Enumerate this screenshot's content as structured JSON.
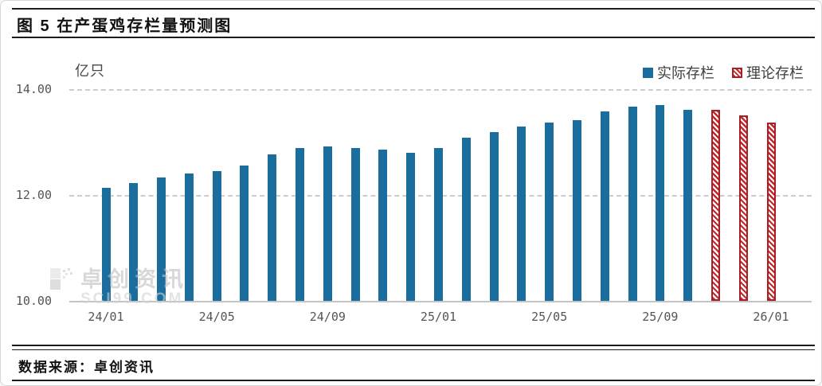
{
  "header": {
    "title": "图 5 在产蛋鸡存栏量预测图"
  },
  "footer": {
    "source_label": "数据来源：卓创资讯"
  },
  "watermark": {
    "brand": "卓创资讯",
    "site": "SCI99.COM"
  },
  "colors": {
    "actual_bar": "#1b6d9e",
    "theory_bar_fill": "#c2272d",
    "theory_bar_border": "#a81e23",
    "gridline": "#cccccc",
    "axis_text": "#555555",
    "title_text": "#111111"
  },
  "chart_data": {
    "type": "bar",
    "title": "在产蛋鸡存栏量预测图",
    "unit_label": "亿只",
    "ylabel": "亿只",
    "xlabel": "",
    "ylim": [
      10.0,
      14.0
    ],
    "yticks": [
      10.0,
      12.0,
      14.0
    ],
    "grid": "horizontal-dashed",
    "legend_position": "top-right",
    "x": [
      "24/01",
      "24/02",
      "24/03",
      "24/04",
      "24/05",
      "24/06",
      "24/07",
      "24/08",
      "24/09",
      "24/10",
      "24/11",
      "24/12",
      "25/01",
      "25/02",
      "25/03",
      "25/04",
      "25/05",
      "25/06",
      "25/07",
      "25/08",
      "25/09",
      "25/10",
      "25/11",
      "25/12",
      "26/01"
    ],
    "x_tick_labels": [
      "24/01",
      "24/05",
      "24/09",
      "25/01",
      "25/05",
      "25/09",
      "26/01"
    ],
    "series": [
      {
        "name": "实际存栏",
        "style": "solid",
        "values": [
          12.13,
          12.22,
          12.33,
          12.41,
          12.45,
          12.55,
          12.77,
          12.89,
          12.92,
          12.89,
          12.86,
          12.8,
          12.88,
          13.09,
          13.19,
          13.3,
          13.37,
          13.42,
          13.58,
          13.67,
          13.7,
          13.61,
          null,
          null,
          null
        ]
      },
      {
        "name": "理论存栏",
        "style": "hatched",
        "values": [
          null,
          null,
          null,
          null,
          null,
          null,
          null,
          null,
          null,
          null,
          null,
          null,
          null,
          null,
          null,
          null,
          null,
          null,
          null,
          null,
          null,
          null,
          13.61,
          13.5,
          13.37
        ]
      }
    ]
  }
}
